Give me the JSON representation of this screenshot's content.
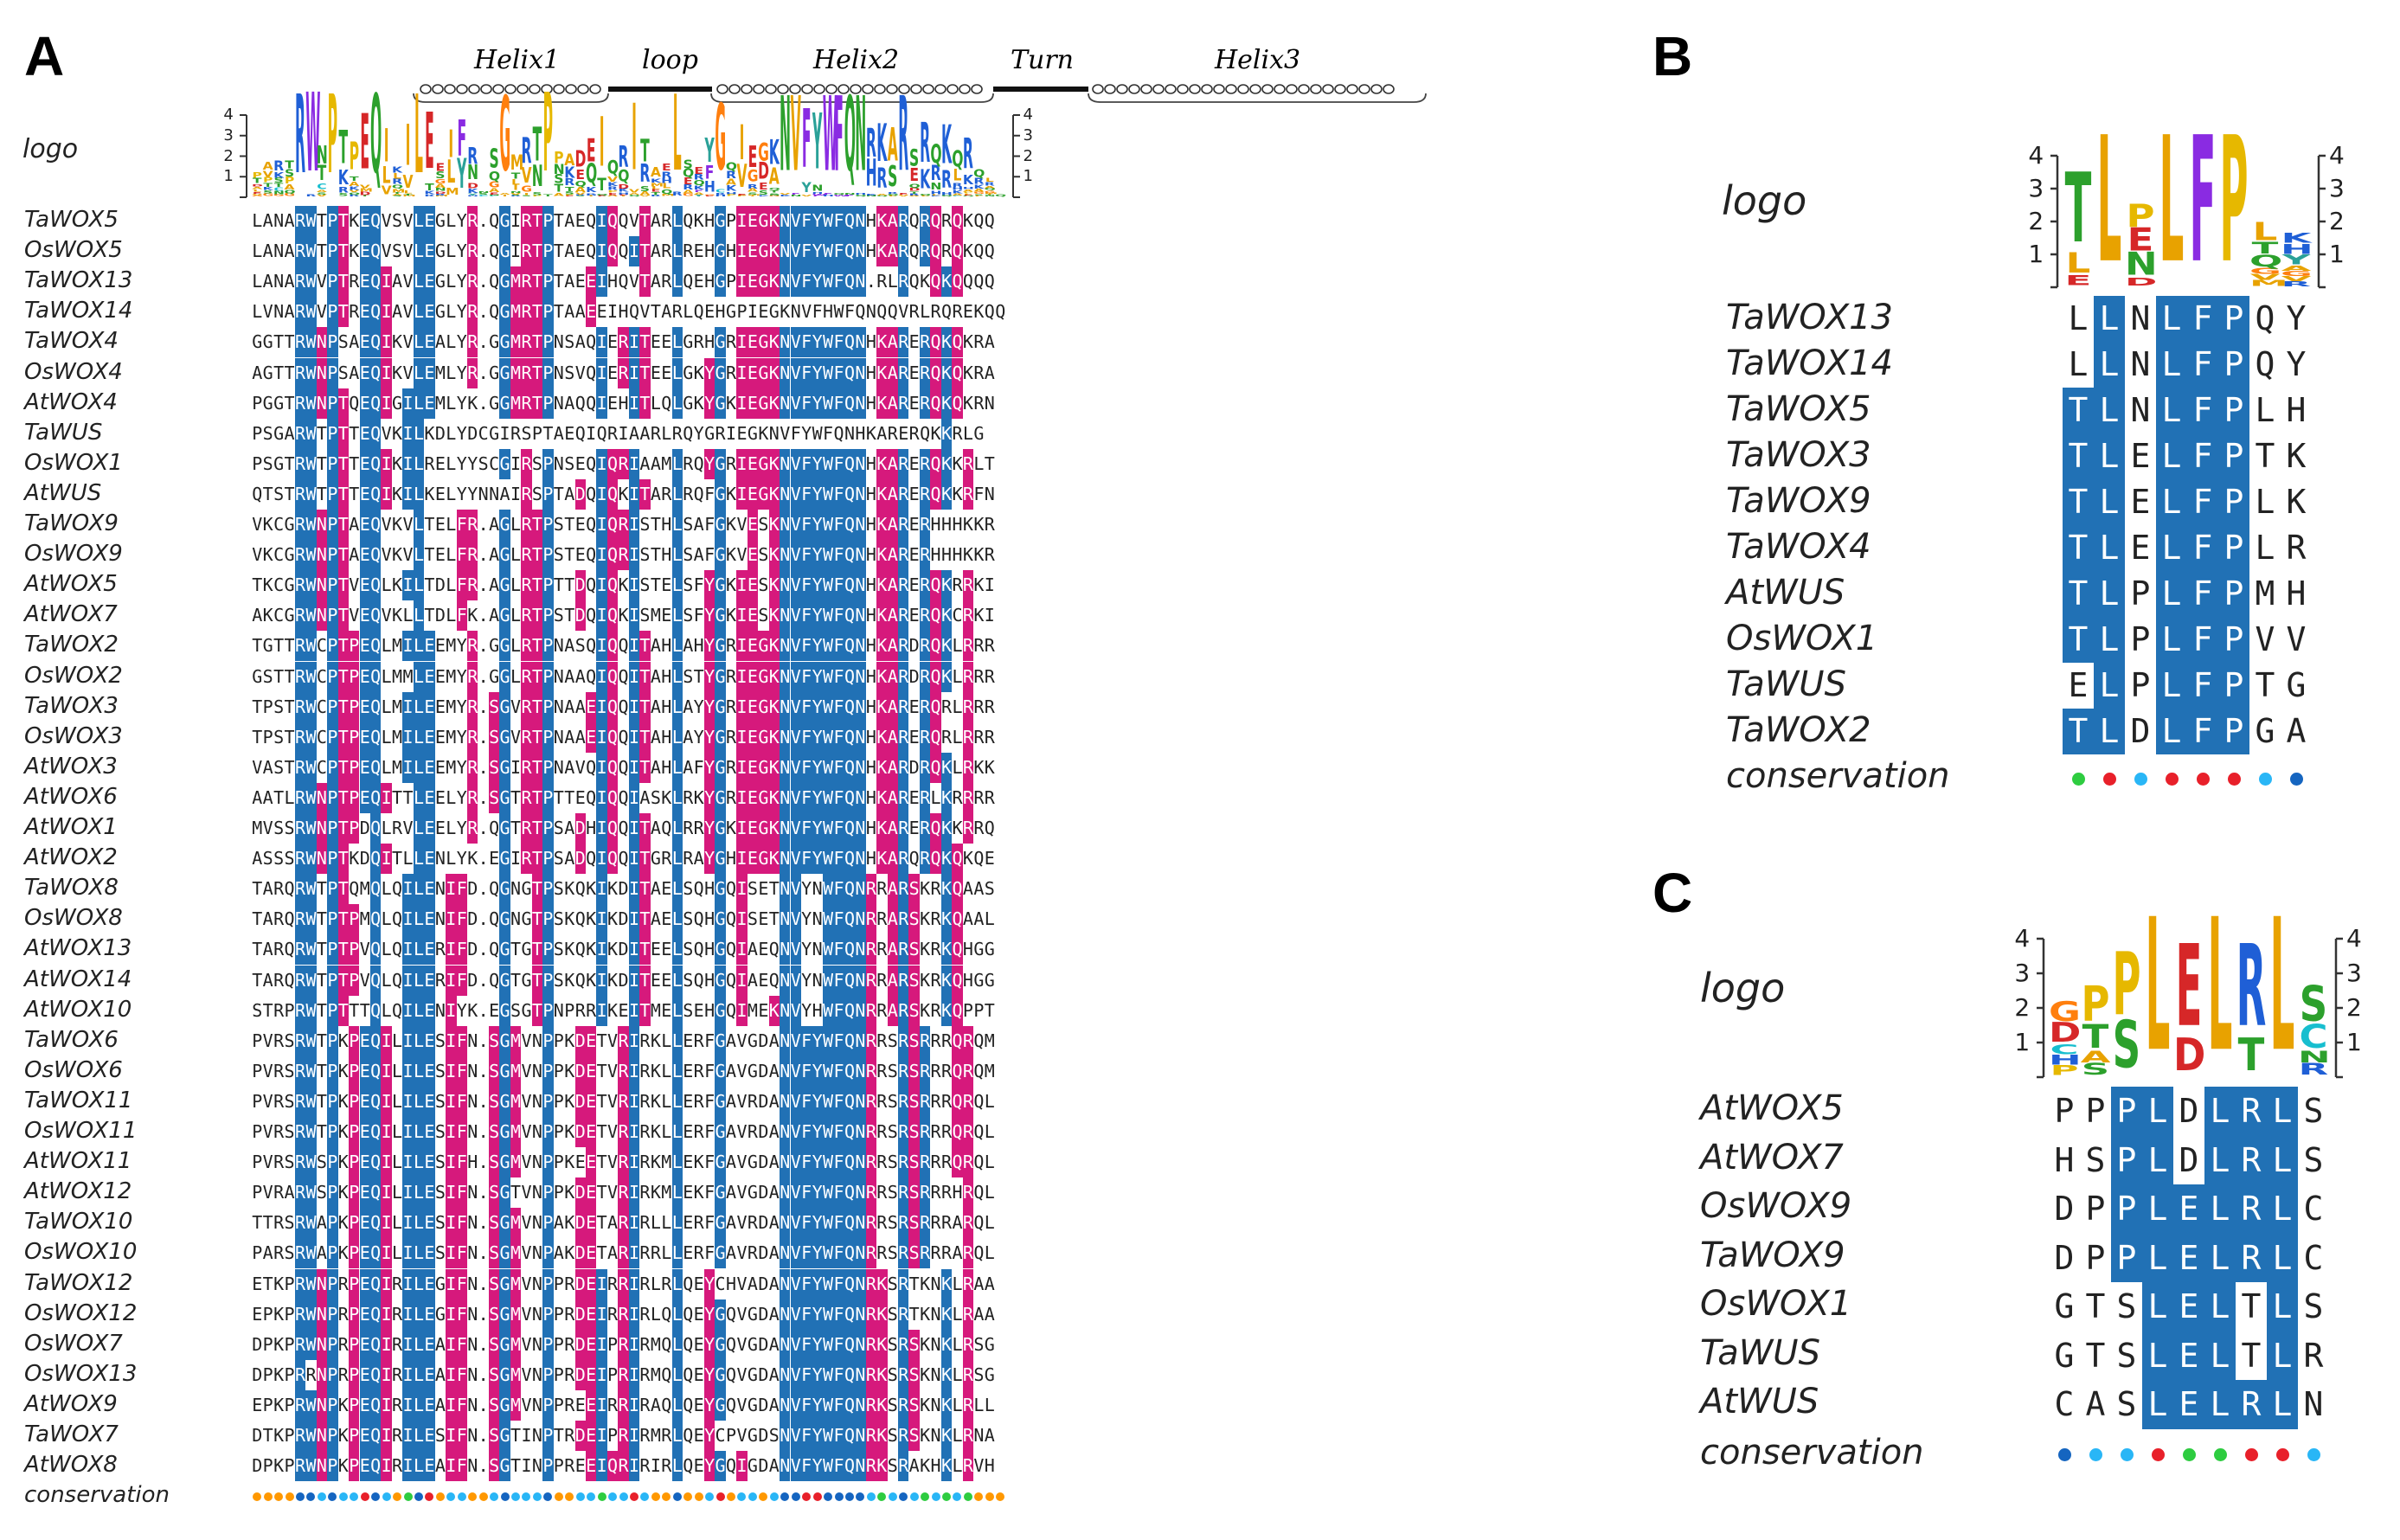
{
  "panel_a": {
    "letter": "A",
    "secondary_structure": [
      "Helix1",
      "loop",
      "Helix2",
      "Turn",
      "Helix3"
    ],
    "logo_label": "logo",
    "logo_ticks": [
      "4",
      "3",
      "2",
      "1"
    ],
    "conservation_label": "conservation",
    "rows": [
      {
        "name": "TaWOX5",
        "seq": "LANARWTPTKEQVSVLEGLYR.QGIRTPTAEQIQQVTARLQKHGPIEGKNVFYWFQNHKARQRQRQKQQ"
      },
      {
        "name": "OsWOX5",
        "seq": "LANARWTPTKEQVSVLEGLYR.QGIRTPTAEQIQQITARLREHGHIEGKNVFYWFQNHKARQRQRQKQQ"
      },
      {
        "name": "TaWOX13",
        "seq": "LANARWVPTREQIAVLEGLYR.QGMRTPTAEEIHQVTARLQEHGPIEGKNVFYWFQN.RLRQKQKQQQQ"
      },
      {
        "name": "TaWOX14",
        "seq": "LVNARWVPTREQIAVLEGLYR.QGMRTPTAAEEIHQVTARLQEHGPIEGKNVFHWFQNQQVRLRQREKQQ"
      },
      {
        "name": "TaWOX4",
        "seq": "GGTTRWNPSAEQIKVLEALYR.GGMRTPNSAQIERITEELGRHGRIEGKNVFYWFQNHKARERQKQKRA"
      },
      {
        "name": "OsWOX4",
        "seq": "AGTTRWNPSAEQIKVLEMLYR.GGMRTPNSVQIERITEELGKYGRIEGKNVFYWFQNHKARERQKQKRA"
      },
      {
        "name": "AtWOX4",
        "seq": "PGGTRWNPTQEQIGILEMLYK.GGMRTPNAQQIEHITLQLGKYGKIEGKNVFYWFQNHKARERQKQKRN"
      },
      {
        "name": "TaWUS",
        "seq": "PSGARWTPTTEQVKILKDLYDCGIRSPTAEQIQRIAARLRQYGRIEGKNVFYWFQNHKARERQKKRLG"
      },
      {
        "name": "OsWOX1",
        "seq": "PSGTRWTPTTEQIKILRELYYSCGIRSPNSEQIQRIAAMLRQYGRIEGKNVFYWFQNHKARERQKKRLT"
      },
      {
        "name": "AtWUS",
        "seq": "QTSTRWTPTTEQIKILKELYYNNAIRSPTADQIQKITARLRQFGKIEGKNVFYWFQNHKARERQKKRFN"
      },
      {
        "name": "TaWOX9",
        "seq": "VKCGRWNPTAEQVKVLTELFR.AGLRTPSTEQIQRISTHLSAFGKVESKNVFYWFQNHKARERHHHKKR"
      },
      {
        "name": "OsWOX9",
        "seq": "VKCGRWNPTAEQVKVLTELFR.AGLRTPSTEQIQRISTHLSAFGKVESKNVFYWFQNHKARERHHHKKR"
      },
      {
        "name": "AtWOX5",
        "seq": "TKCGRWNPTVEQLKILTDLFR.AGLRTPTTDQIQKISTELSFYGKIESKNVFYWFQNHKARERQKRRKI"
      },
      {
        "name": "AtWOX7",
        "seq": "AKCGRWNPTVEQVKLLTDLFK.AGLRTPSTDQIQKISMELSFYGKIESKNVFYWFQNHKARERQKCRKI"
      },
      {
        "name": "TaWOX2",
        "seq": "TGTTRWCPTPEQLMILEEMYR.GGLRTPNASQIQQITAHLAHYGRIEGKNVFYWFQNHKARDRQKLRRR"
      },
      {
        "name": "OsWOX2",
        "seq": "GSTTRWCPTPEQLMMLEEMYR.GGLRTPNAAQIQQITAHLSTYGRIEGKNVFYWFQNHKARDRQKLRRR"
      },
      {
        "name": "TaWOX3",
        "seq": "TPSTRWCPTPEQLMILEEMYR.SGVRTPNAAEIQQITAHLAYYGRIEGKNVFYWFQNHKARERQRLRRR"
      },
      {
        "name": "OsWOX3",
        "seq": "TPSTRWCPTPEQLMILEEMYR.SGVRTPNAAEIQQITAHLAYYGRIEGKNVFYWFQNHKARERQRLRRR"
      },
      {
        "name": "AtWOX3",
        "seq": "VASTRWCPTPEQLMILEEMYR.SGIRTPNAVQIQQITAHLAFYGRIEGKNVFYWFQNHKARDRQKLRKK"
      },
      {
        "name": "AtWOX6",
        "seq": "AATLRWNPTPEQITTLEELYR.SGTRTPTTEQIQQIASKLRKYGRIEGKNVFYWFQNHKARERLKRRRR"
      },
      {
        "name": "AtWOX1",
        "seq": "MVSSRWNPTPDQLRVLEELYR.QGTRTPSADHIQQITAQLRRYGKIEGKNVFYWFQNHKARERQKKRRQ"
      },
      {
        "name": "AtWOX2",
        "seq": "ASSSRWNPTKDQITLLENLYK.EGIRTPSADQIQQITGRLRAYGHIEGKNVFYWFQNHKARQRQKQKQE"
      },
      {
        "name": "TaWOX8",
        "seq": "TARQRWTPTQMQLQILENIFD.QGNGTPSKQKIKDITAELSQHGQISETNVYNWFQNRRARSKRKQAAS"
      },
      {
        "name": "OsWOX8",
        "seq": "TARQRWTPTPMQLQILENIFD.QGNGTPSKQKIKDITAELSQHGQISETNVYNWFQNRRARSKRKQAAL"
      },
      {
        "name": "AtWOX13",
        "seq": "TARQRWTPTPVQLQILERIFD.QGTGTPSKQKIKDITEELSQHGQIAEQNVYNWFQNRRARSKRKQHGG"
      },
      {
        "name": "AtWOX14",
        "seq": "TARQRWTPTPVQLQILERIFD.QGTGTPSKQKIKDITEELSQHGQIAEQNVYNWFQNRRARSKRKQHGG"
      },
      {
        "name": "AtWOX10",
        "seq": "STRPRWTPTTTQLQILENIYK.EGSGTPNPRRIKEITMELSEHGQIMEKNVYHWFQNRRARSKRKQPPT"
      },
      {
        "name": "TaWOX6",
        "seq": "PVRSRWTPKPEQILILESIFN.SGMVNPPKDETVRIRKLLERFGAVGDANVFYWFQNRRSRSRRRQRQM"
      },
      {
        "name": "OsWOX6",
        "seq": "PVRSRWTPKPEQILILESIFN.SGMVNPPKDETVRIRKLLERFGAVGDANVFYWFQNRRSRSRRRQRQM"
      },
      {
        "name": "TaWOX11",
        "seq": "PVRSRWTPKPEQILILESIFN.SGMVNPPKDETVRIRKLLERFGAVRDANVFYWFQNRRSRSRRRQRQL"
      },
      {
        "name": "OsWOX11",
        "seq": "PVRSRWTPKPEQILILESIFN.SGMVNPPKDETVRIRKLLERFGAVRDANVFYWFQNRRSRSRRRQRQL"
      },
      {
        "name": "AtWOX11",
        "seq": "PVRSRWSPKPEQILILESIFH.SGMVNPPKEETVRIRKMLEKFGAVGDANVFYWFQNRRSRSRRRQRQL"
      },
      {
        "name": "AtWOX12",
        "seq": "PVRARWSPKPEQILILESIFN.SGTVNPPKDETVRIRKMLEKFGAVGDANVFYWFQNRRSRSRRRHRQL"
      },
      {
        "name": "TaWOX10",
        "seq": "TTRSRWAPKPEQILILESIFN.SGMVNPAKDETARIRLLLERFGAVRDANVFYWFQNRRSRSRRRARQL"
      },
      {
        "name": "OsWOX10",
        "seq": "PARSRWAPKPEQILILESIFN.SGMVNPAKDETARIRRLLERFGAVRDANVFYWFQNRRSRSRRRARQL"
      },
      {
        "name": "TaWOX12",
        "seq": "ETKPRWNPRPEQIRILEGIFN.SGMVNPPRDEIRRIRLRLQEYCHVADANVFYWFQNRKSRTKNKLRAA"
      },
      {
        "name": "OsWOX12",
        "seq": "EPKPRWNPRPEQIRILEGIFN.SGMVNPPRDEIRRIRLQLQEYGQVGDANVFYWFQNRKSRTKNKLRAA"
      },
      {
        "name": "OsWOX7",
        "seq": "DPKPRWNPRPEQIRILEAIFN.SGMVNPPRDEIPRIRMQLQEYGQVGDANVFYWFQNRKSRSKNKLRSG"
      },
      {
        "name": "OsWOX13",
        "seq": "DPKPRRNPRPEQIRILEAIFN.SGMVNPPRDEIPRIRMQLQEYGQVGDANVFYWFQNRKSRSKNKLRSG"
      },
      {
        "name": "AtWOX9",
        "seq": "EPKPRWNPKPEQIRILEAIFN.SGMVNPPREEIRRIRAQLQEYGQVGDANVFYWFQNRKSRSKNKLRLL"
      },
      {
        "name": "TaWOX7",
        "seq": "DTKPRWNPKPEQIRILESIFN.SGTINPTRDEIPRIRMRLQEYCPVGDSNVFYWFQNRKSRSKNKLRNA"
      },
      {
        "name": "AtWOX8",
        "seq": "DPKPRWNPKPEQIRILEAIFN.SGTINPPREEIQRIRIRLQEYGQIGDANVFYWFQNRKSRAKHKLRVH"
      }
    ]
  },
  "panel_b": {
    "letter": "B",
    "logo_label": "logo",
    "logo_ticks": [
      "4",
      "3",
      "2",
      "1"
    ],
    "conservation_label": "conservation",
    "rows": [
      {
        "name": "TaWOX13",
        "seq": "LLNLFPQY"
      },
      {
        "name": "TaWOX14",
        "seq": "LLNLFPQY"
      },
      {
        "name": "TaWOX5",
        "seq": "TLNLFPLH"
      },
      {
        "name": "TaWOX3",
        "seq": "TLELFPTK"
      },
      {
        "name": "TaWOX9",
        "seq": "TLELFPLK"
      },
      {
        "name": "TaWOX4",
        "seq": "TLELFPLR"
      },
      {
        "name": "AtWUS",
        "seq": "TLPLFPMH"
      },
      {
        "name": "OsWOX1",
        "seq": "TLPLFPVV"
      },
      {
        "name": "TaWUS",
        "seq": "ELPLFPTG"
      },
      {
        "name": "TaWOX2",
        "seq": "TLDLFPGA"
      }
    ],
    "conservation_colors": [
      "#2ecc40",
      "#e8202a",
      "#29b6f6",
      "#e8202a",
      "#e8202a",
      "#e8202a",
      "#29b6f6",
      "#1565c0"
    ]
  },
  "panel_c": {
    "letter": "C",
    "logo_label": "logo",
    "logo_ticks": [
      "4",
      "3",
      "2",
      "1"
    ],
    "conservation_label": "conservation",
    "rows": [
      {
        "name": "AtWOX5",
        "seq": "PPPLDLRLS"
      },
      {
        "name": "AtWOX7",
        "seq": "HSPLDLRLS"
      },
      {
        "name": "OsWOX9",
        "seq": "DPPLELRLC"
      },
      {
        "name": "TaWOX9",
        "seq": "DPPLELRLC"
      },
      {
        "name": "OsWOX1",
        "seq": "GTSLELTLS"
      },
      {
        "name": "TaWUS",
        "seq": "GTSLELTLR"
      },
      {
        "name": "AtWUS",
        "seq": "CASLELRLN"
      }
    ],
    "conservation_colors": [
      "#1565c0",
      "#29b6f6",
      "#29b6f6",
      "#e8202a",
      "#2ecc40",
      "#2ecc40",
      "#e8202a",
      "#e8202a",
      "#29b6f6"
    ]
  },
  "colors": {
    "blue": "#2171b5",
    "magenta": "#d6197c"
  }
}
